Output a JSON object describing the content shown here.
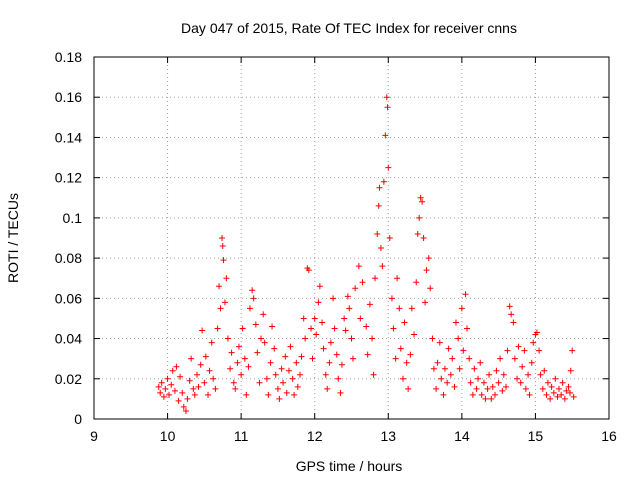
{
  "chart_data": {
    "type": "scatter",
    "title": "Day 047 of 2015, Rate Of TEC Index for receiver cnns",
    "xlabel": "GPS time / hours",
    "ylabel": "ROTI / TECUs",
    "xlim": [
      9,
      16
    ],
    "ylim": [
      0,
      0.18
    ],
    "xticks": [
      "9",
      "10",
      "11",
      "12",
      "13",
      "14",
      "15",
      "16"
    ],
    "yticks": [
      "0",
      "0.02",
      "0.04",
      "0.06",
      "0.08",
      "0.1",
      "0.12",
      "0.14",
      "0.16",
      "0.18"
    ],
    "grid": true,
    "marker": "+",
    "color": "#ff0000",
    "series": [
      {
        "name": "ROTI",
        "points": [
          [
            9.88,
            0.016
          ],
          [
            9.9,
            0.013
          ],
          [
            9.92,
            0.018
          ],
          [
            9.95,
            0.011
          ],
          [
            9.97,
            0.015
          ],
          [
            10.0,
            0.02
          ],
          [
            10.02,
            0.012
          ],
          [
            10.05,
            0.017
          ],
          [
            10.07,
            0.024
          ],
          [
            10.1,
            0.014
          ],
          [
            10.12,
            0.026
          ],
          [
            10.15,
            0.009
          ],
          [
            10.17,
            0.021
          ],
          [
            10.2,
            0.013
          ],
          [
            10.22,
            0.006
          ],
          [
            10.25,
            0.004
          ],
          [
            10.27,
            0.01
          ],
          [
            10.3,
            0.019
          ],
          [
            10.32,
            0.03
          ],
          [
            10.35,
            0.015
          ],
          [
            10.37,
            0.012
          ],
          [
            10.4,
            0.022
          ],
          [
            10.42,
            0.016
          ],
          [
            10.45,
            0.027
          ],
          [
            10.47,
            0.044
          ],
          [
            10.5,
            0.018
          ],
          [
            10.52,
            0.031
          ],
          [
            10.55,
            0.012
          ],
          [
            10.57,
            0.024
          ],
          [
            10.6,
            0.038
          ],
          [
            10.62,
            0.02
          ],
          [
            10.65,
            0.015
          ],
          [
            10.68,
            0.045
          ],
          [
            10.7,
            0.066
          ],
          [
            10.72,
            0.055
          ],
          [
            10.74,
            0.09
          ],
          [
            10.75,
            0.086
          ],
          [
            10.76,
            0.079
          ],
          [
            10.78,
            0.058
          ],
          [
            10.8,
            0.07
          ],
          [
            10.82,
            0.04
          ],
          [
            10.85,
            0.025
          ],
          [
            10.87,
            0.033
          ],
          [
            10.9,
            0.018
          ],
          [
            10.92,
            0.015
          ],
          [
            10.95,
            0.028
          ],
          [
            10.97,
            0.036
          ],
          [
            11.0,
            0.022
          ],
          [
            11.02,
            0.045
          ],
          [
            11.05,
            0.03
          ],
          [
            11.07,
            0.012
          ],
          [
            11.1,
            0.026
          ],
          [
            11.12,
            0.055
          ],
          [
            11.15,
            0.064
          ],
          [
            11.17,
            0.06
          ],
          [
            11.2,
            0.047
          ],
          [
            11.22,
            0.033
          ],
          [
            11.25,
            0.018
          ],
          [
            11.27,
            0.04
          ],
          [
            11.3,
            0.052
          ],
          [
            11.32,
            0.038
          ],
          [
            11.35,
            0.02
          ],
          [
            11.37,
            0.012
          ],
          [
            11.4,
            0.028
          ],
          [
            11.42,
            0.046
          ],
          [
            11.45,
            0.035
          ],
          [
            11.47,
            0.022
          ],
          [
            11.5,
            0.015
          ],
          [
            11.52,
            0.01
          ],
          [
            11.55,
            0.025
          ],
          [
            11.57,
            0.018
          ],
          [
            11.6,
            0.031
          ],
          [
            11.62,
            0.013
          ],
          [
            11.65,
            0.024
          ],
          [
            11.67,
            0.036
          ],
          [
            11.7,
            0.02
          ],
          [
            11.72,
            0.012
          ],
          [
            11.75,
            0.028
          ],
          [
            11.77,
            0.016
          ],
          [
            11.8,
            0.022
          ],
          [
            11.82,
            0.031
          ],
          [
            11.85,
            0.05
          ],
          [
            11.87,
            0.04
          ],
          [
            11.9,
            0.075
          ],
          [
            11.92,
            0.074
          ],
          [
            11.95,
            0.045
          ],
          [
            11.97,
            0.03
          ],
          [
            12.0,
            0.05
          ],
          [
            12.02,
            0.042
          ],
          [
            12.05,
            0.058
          ],
          [
            12.07,
            0.066
          ],
          [
            12.1,
            0.048
          ],
          [
            12.12,
            0.035
          ],
          [
            12.15,
            0.022
          ],
          [
            12.17,
            0.015
          ],
          [
            12.2,
            0.028
          ],
          [
            12.22,
            0.038
          ],
          [
            12.25,
            0.06
          ],
          [
            12.27,
            0.045
          ],
          [
            12.3,
            0.032
          ],
          [
            12.32,
            0.02
          ],
          [
            12.35,
            0.013
          ],
          [
            12.37,
            0.027
          ],
          [
            12.4,
            0.05
          ],
          [
            12.42,
            0.044
          ],
          [
            12.45,
            0.061
          ],
          [
            12.47,
            0.055
          ],
          [
            12.5,
            0.04
          ],
          [
            12.52,
            0.03
          ],
          [
            12.55,
            0.065
          ],
          [
            12.6,
            0.076
          ],
          [
            12.62,
            0.05
          ],
          [
            12.65,
            0.068
          ],
          [
            12.7,
            0.046
          ],
          [
            12.72,
            0.032
          ],
          [
            12.75,
            0.057
          ],
          [
            12.78,
            0.04
          ],
          [
            12.8,
            0.022
          ],
          [
            12.82,
            0.07
          ],
          [
            12.85,
            0.092
          ],
          [
            12.87,
            0.106
          ],
          [
            12.88,
            0.115
          ],
          [
            12.9,
            0.085
          ],
          [
            12.92,
            0.076
          ],
          [
            12.94,
            0.118
          ],
          [
            12.96,
            0.141
          ],
          [
            12.98,
            0.16
          ],
          [
            12.99,
            0.155
          ],
          [
            13.0,
            0.125
          ],
          [
            13.02,
            0.09
          ],
          [
            13.05,
            0.06
          ],
          [
            13.07,
            0.045
          ],
          [
            13.1,
            0.03
          ],
          [
            13.12,
            0.07
          ],
          [
            13.15,
            0.055
          ],
          [
            13.17,
            0.035
          ],
          [
            13.2,
            0.02
          ],
          [
            13.22,
            0.048
          ],
          [
            13.25,
            0.028
          ],
          [
            13.27,
            0.015
          ],
          [
            13.3,
            0.032
          ],
          [
            13.32,
            0.055
          ],
          [
            13.35,
            0.042
          ],
          [
            13.38,
            0.068
          ],
          [
            13.4,
            0.092
          ],
          [
            13.42,
            0.1
          ],
          [
            13.44,
            0.11
          ],
          [
            13.46,
            0.108
          ],
          [
            13.48,
            0.09
          ],
          [
            13.5,
            0.058
          ],
          [
            13.52,
            0.074
          ],
          [
            13.55,
            0.08
          ],
          [
            13.57,
            0.065
          ],
          [
            13.6,
            0.04
          ],
          [
            13.62,
            0.025
          ],
          [
            13.65,
            0.015
          ],
          [
            13.67,
            0.028
          ],
          [
            13.7,
            0.038
          ],
          [
            13.72,
            0.02
          ],
          [
            13.75,
            0.012
          ],
          [
            13.77,
            0.025
          ],
          [
            13.8,
            0.018
          ],
          [
            13.82,
            0.035
          ],
          [
            13.85,
            0.022
          ],
          [
            13.87,
            0.03
          ],
          [
            13.9,
            0.016
          ],
          [
            13.92,
            0.048
          ],
          [
            13.95,
            0.04
          ],
          [
            13.97,
            0.025
          ],
          [
            14.0,
            0.055
          ],
          [
            14.02,
            0.034
          ],
          [
            14.05,
            0.062
          ],
          [
            14.07,
            0.045
          ],
          [
            14.1,
            0.03
          ],
          [
            14.12,
            0.018
          ],
          [
            14.15,
            0.012
          ],
          [
            14.17,
            0.025
          ],
          [
            14.2,
            0.015
          ],
          [
            14.22,
            0.02
          ],
          [
            14.25,
            0.028
          ],
          [
            14.27,
            0.012
          ],
          [
            14.3,
            0.018
          ],
          [
            14.32,
            0.01
          ],
          [
            14.35,
            0.015
          ],
          [
            14.37,
            0.022
          ],
          [
            14.4,
            0.01
          ],
          [
            14.42,
            0.016
          ],
          [
            14.45,
            0.012
          ],
          [
            14.47,
            0.024
          ],
          [
            14.5,
            0.018
          ],
          [
            14.52,
            0.03
          ],
          [
            14.55,
            0.014
          ],
          [
            14.57,
            0.022
          ],
          [
            14.6,
            0.016
          ],
          [
            14.62,
            0.034
          ],
          [
            14.65,
            0.056
          ],
          [
            14.67,
            0.052
          ],
          [
            14.7,
            0.048
          ],
          [
            14.72,
            0.03
          ],
          [
            14.75,
            0.02
          ],
          [
            14.77,
            0.036
          ],
          [
            14.8,
            0.018
          ],
          [
            14.82,
            0.026
          ],
          [
            14.85,
            0.034
          ],
          [
            14.87,
            0.015
          ],
          [
            14.9,
            0.022
          ],
          [
            14.92,
            0.012
          ],
          [
            14.95,
            0.028
          ],
          [
            14.97,
            0.038
          ],
          [
            15.0,
            0.042
          ],
          [
            15.02,
            0.043
          ],
          [
            15.05,
            0.034
          ],
          [
            15.07,
            0.022
          ],
          [
            15.1,
            0.015
          ],
          [
            15.12,
            0.024
          ],
          [
            15.15,
            0.012
          ],
          [
            15.17,
            0.018
          ],
          [
            15.2,
            0.01
          ],
          [
            15.22,
            0.016
          ],
          [
            15.25,
            0.013
          ],
          [
            15.27,
            0.02
          ],
          [
            15.3,
            0.011
          ],
          [
            15.32,
            0.015
          ],
          [
            15.35,
            0.012
          ],
          [
            15.37,
            0.018
          ],
          [
            15.4,
            0.01
          ],
          [
            15.42,
            0.014
          ],
          [
            15.45,
            0.016
          ],
          [
            15.47,
            0.013
          ],
          [
            15.48,
            0.024
          ],
          [
            15.5,
            0.034
          ],
          [
            15.52,
            0.011
          ]
        ]
      }
    ]
  }
}
